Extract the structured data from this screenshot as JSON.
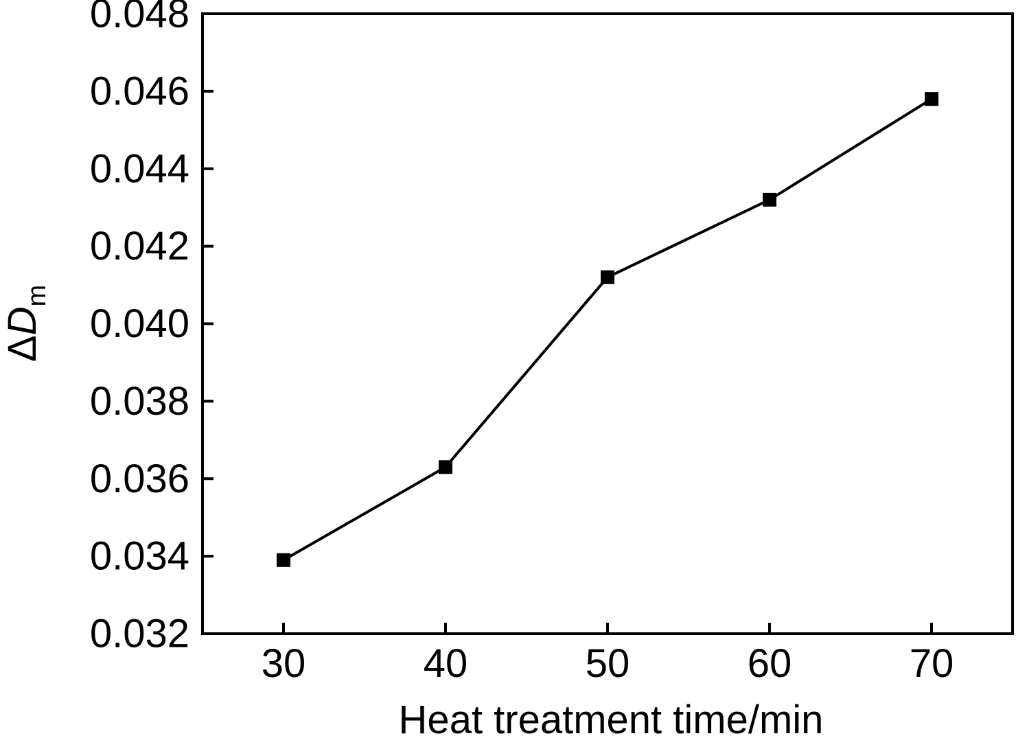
{
  "chart_data": {
    "type": "line",
    "xlabel": "Heat treatment time/min",
    "ylabel": {
      "prefix": "Δ",
      "main": "D",
      "subscript": "m"
    },
    "x": [
      30,
      40,
      50,
      60,
      70
    ],
    "series": [
      {
        "values": [
          0.0339,
          0.0363,
          0.0412,
          0.0432,
          0.0458
        ]
      }
    ],
    "xlim": [
      25,
      75
    ],
    "ylim": [
      0.032,
      0.048
    ],
    "xticks": [
      "30",
      "40",
      "50",
      "60",
      "70"
    ],
    "yticks": [
      "0.032",
      "0.034",
      "0.036",
      "0.038",
      "0.040",
      "0.042",
      "0.044",
      "0.046",
      "0.048"
    ],
    "grid": false,
    "marker": "square",
    "colors": {
      "line": "#000000",
      "marker": "#000000",
      "axis": "#000000"
    }
  }
}
